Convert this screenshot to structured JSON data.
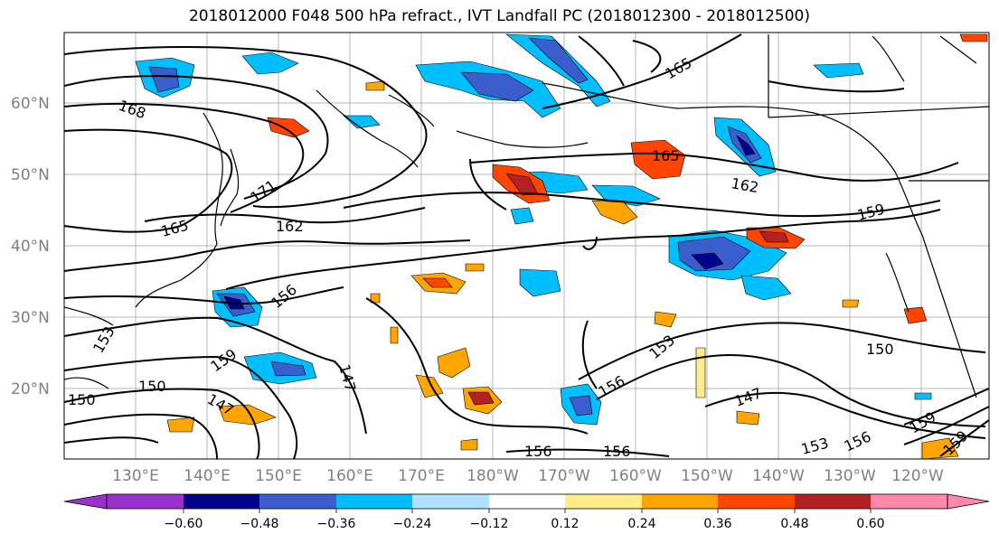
{
  "title": "2018012000 F048 500 hPa refract., IVT Landfall PC (2018012300 - 2018012500)",
  "lat_labels": [
    "60°N",
    "50°N",
    "40°N",
    "30°N",
    "20°N"
  ],
  "lon_labels": [
    "130°E",
    "140°E",
    "150°E",
    "160°E",
    "170°E",
    "180°W",
    "170°W",
    "160°W",
    "150°W",
    "140°W",
    "130°W",
    "120°W"
  ],
  "contour_labels": [
    "168",
    "171",
    "165",
    "162",
    "156",
    "153",
    "159",
    "150",
    "147",
    "147",
    "165",
    "165",
    "162",
    "159",
    "156",
    "153",
    "150",
    "147",
    "156",
    "156",
    "153",
    "156",
    "159",
    "159",
    "150"
  ],
  "colorbar": {
    "ticks": [
      "−0.60",
      "−0.48",
      "−0.36",
      "−0.24",
      "−0.12",
      "0.12",
      "0.24",
      "0.36",
      "0.48",
      "0.60"
    ],
    "colors": [
      "#9932cc",
      "#00008b",
      "#3a5fcd",
      "#00bfff",
      "#b0e2ff",
      "#ffffff",
      "#ffec8b",
      "#ffa500",
      "#ff4500",
      "#b22222",
      "#ff88aa"
    ]
  }
}
